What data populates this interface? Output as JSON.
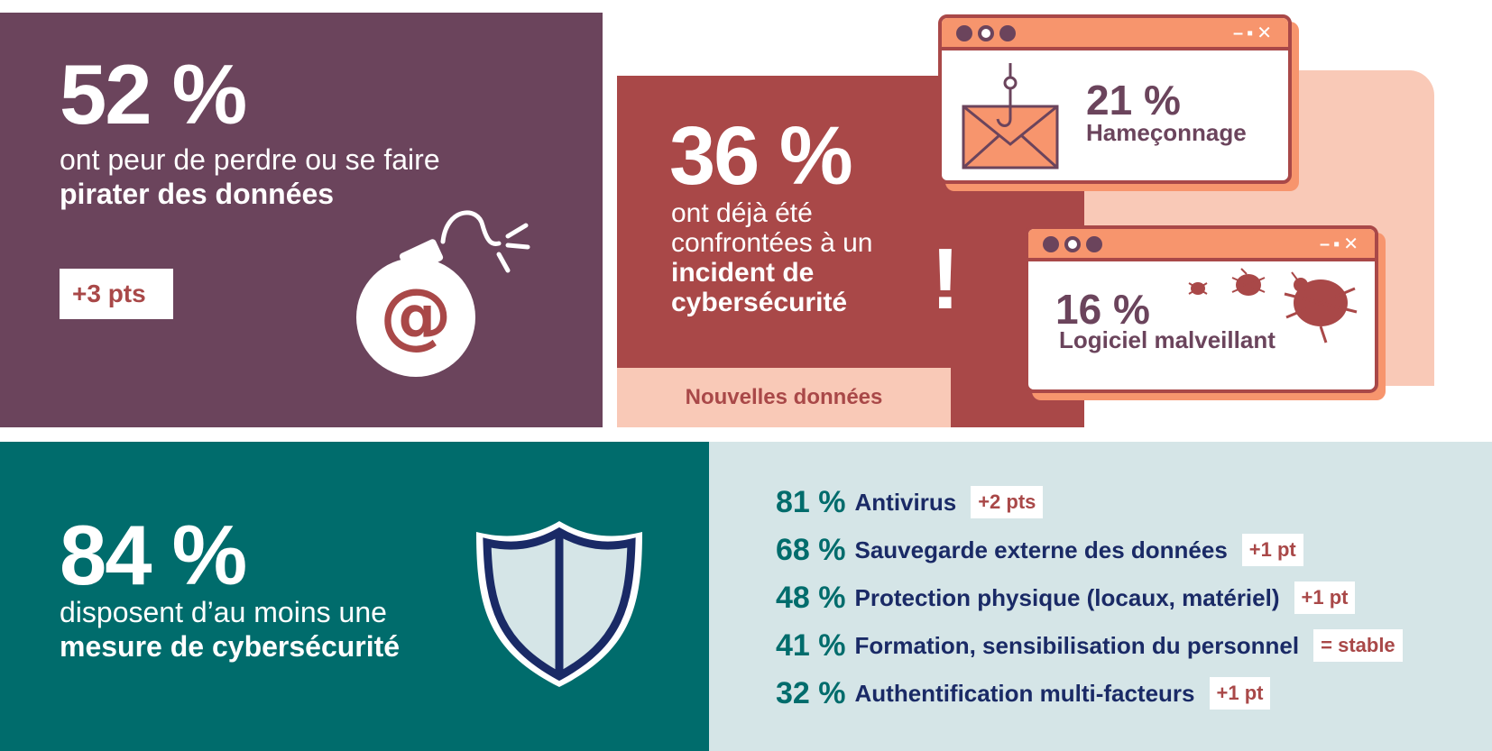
{
  "colors": {
    "purple": "#6b445c",
    "rust": "#a94848",
    "peach": "#f9c9b7",
    "salmon": "#f7956d",
    "teal": "#006c6c",
    "light_teal": "#d5e5e7",
    "navy": "#1a2a66"
  },
  "panel1": {
    "percent": "52 %",
    "text_plain": "ont peur de perdre ou se faire ",
    "text_bold": "pirater des données",
    "badge": "+3 pts",
    "icon": "bomb-icon"
  },
  "panel2": {
    "percent": "36 %",
    "text_plain": "ont déjà été confrontées à un ",
    "text_bold": "incident de cybersécurité",
    "exclamation": "!",
    "new_data_label": "Nouvelles données",
    "windows": [
      {
        "percent": "21 %",
        "label": "Hameçonnage",
        "icon": "phishing-envelope-icon"
      },
      {
        "percent": "16 %",
        "label": "Logiciel malveillant",
        "icon": "malware-bug-icon"
      }
    ]
  },
  "panel3": {
    "percent": "84 %",
    "text_plain": "disposent d’au moins une ",
    "text_bold": "mesure de cybersécurité",
    "icon": "shield-icon"
  },
  "measures": [
    {
      "percent": "81 %",
      "label": "Antivirus",
      "badge": "+2 pts"
    },
    {
      "percent": "68 %",
      "label": "Sauvegarde externe des données",
      "badge": "+1 pt"
    },
    {
      "percent": "48 %",
      "label": "Protection physique (locaux, matériel)",
      "badge": "+1 pt"
    },
    {
      "percent": "41 %",
      "label": "Formation, sensibilisation du personnel",
      "badge": "= stable"
    },
    {
      "percent": "32 %",
      "label": "Authentification multi-facteurs",
      "badge": "+1 pt"
    }
  ]
}
